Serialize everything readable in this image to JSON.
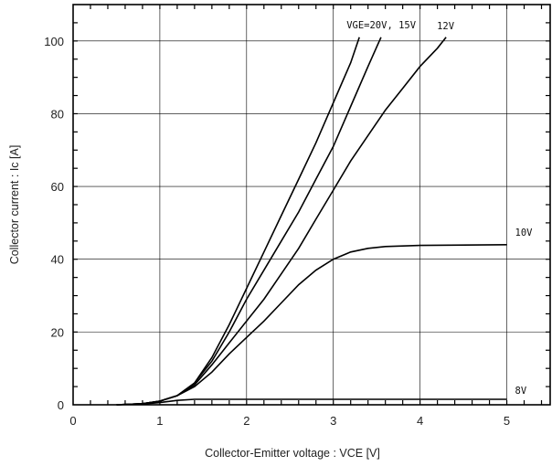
{
  "chart_data": {
    "type": "line",
    "xlabel": "Collector-Emitter voltage : VCE [V]",
    "ylabel": "Collector current : Ic [A]",
    "xlim": [
      0,
      5.5
    ],
    "ylim": [
      0,
      110
    ],
    "x_ticks": [
      "0",
      "1",
      "2",
      "3",
      "4",
      "5"
    ],
    "y_ticks": [
      "0",
      "20",
      "40",
      "60",
      "80",
      "100"
    ],
    "grid": true,
    "series": [
      {
        "name": "VGE=20V, 15V",
        "points": [
          [
            0.5,
            0
          ],
          [
            0.8,
            0.3
          ],
          [
            1.0,
            1
          ],
          [
            1.2,
            2.5
          ],
          [
            1.4,
            6
          ],
          [
            1.6,
            13
          ],
          [
            1.8,
            22
          ],
          [
            2.0,
            32
          ],
          [
            2.2,
            42
          ],
          [
            2.4,
            52
          ],
          [
            2.6,
            62
          ],
          [
            2.8,
            72
          ],
          [
            3.0,
            83
          ],
          [
            3.2,
            94
          ],
          [
            3.3,
            101
          ]
        ]
      },
      {
        "name": "VGE=20V, 15V",
        "points": [
          [
            0.5,
            0
          ],
          [
            0.8,
            0.3
          ],
          [
            1.0,
            1
          ],
          [
            1.2,
            2.5
          ],
          [
            1.4,
            6
          ],
          [
            1.6,
            12
          ],
          [
            1.8,
            20
          ],
          [
            2.0,
            29
          ],
          [
            2.2,
            37
          ],
          [
            2.4,
            45
          ],
          [
            2.6,
            53
          ],
          [
            2.8,
            62
          ],
          [
            3.0,
            71
          ],
          [
            3.2,
            82
          ],
          [
            3.4,
            93
          ],
          [
            3.55,
            101
          ]
        ]
      },
      {
        "name": "12V",
        "points": [
          [
            0.5,
            0
          ],
          [
            0.8,
            0.3
          ],
          [
            1.0,
            1
          ],
          [
            1.2,
            2.5
          ],
          [
            1.4,
            5.5
          ],
          [
            1.6,
            11
          ],
          [
            1.8,
            17
          ],
          [
            2.0,
            23
          ],
          [
            2.2,
            29
          ],
          [
            2.4,
            36
          ],
          [
            2.6,
            43
          ],
          [
            2.8,
            51
          ],
          [
            3.0,
            59
          ],
          [
            3.2,
            67
          ],
          [
            3.4,
            74
          ],
          [
            3.6,
            81
          ],
          [
            3.8,
            87
          ],
          [
            4.0,
            93
          ],
          [
            4.2,
            98
          ],
          [
            4.3,
            101
          ]
        ]
      },
      {
        "name": "10V",
        "points": [
          [
            0.5,
            0
          ],
          [
            0.8,
            0.3
          ],
          [
            1.0,
            1
          ],
          [
            1.2,
            2.5
          ],
          [
            1.4,
            5
          ],
          [
            1.6,
            9
          ],
          [
            1.8,
            14
          ],
          [
            2.0,
            18.5
          ],
          [
            2.2,
            23
          ],
          [
            2.4,
            28
          ],
          [
            2.6,
            33
          ],
          [
            2.8,
            37
          ],
          [
            3.0,
            40
          ],
          [
            3.2,
            42
          ],
          [
            3.4,
            43
          ],
          [
            3.6,
            43.5
          ],
          [
            4.0,
            43.8
          ],
          [
            5.0,
            44
          ]
        ]
      },
      {
        "name": "8V",
        "points": [
          [
            0.5,
            0
          ],
          [
            0.8,
            0.2
          ],
          [
            1.0,
            0.6
          ],
          [
            1.2,
            1.2
          ],
          [
            1.4,
            1.5
          ],
          [
            2.0,
            1.5
          ],
          [
            5.0,
            1.5
          ]
        ]
      }
    ]
  }
}
